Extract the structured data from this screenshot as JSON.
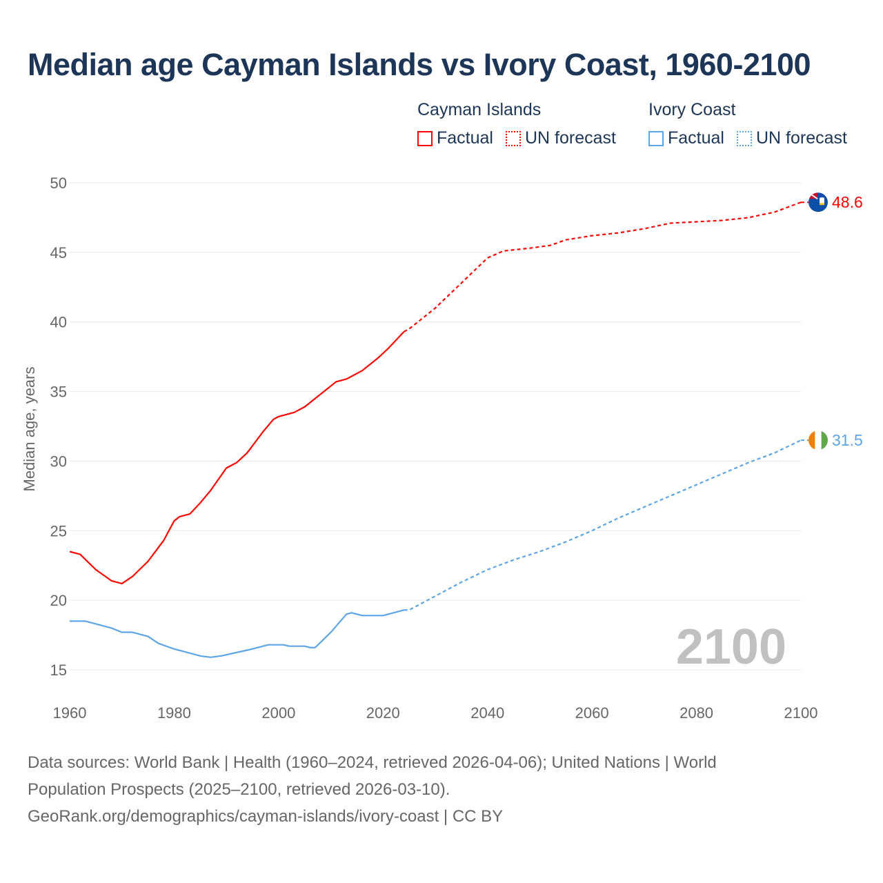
{
  "title": "Median age Cayman Islands vs Ivory Coast, 1960-2100",
  "legend": {
    "groups": [
      {
        "country": "Cayman Islands",
        "factual": "Factual",
        "forecast": "UN forecast",
        "color": "#ff0000"
      },
      {
        "country": "Ivory Coast",
        "factual": "Factual",
        "forecast": "UN forecast",
        "color": "#5ba4e8"
      }
    ]
  },
  "year_watermark": "2100",
  "footer": {
    "line1": "Data sources: World Bank | Health (1960–2024, retrieved 2026-04-06); United Nations | World",
    "line2": "Population Prospects (2025–2100, retrieved 2026-03-10).",
    "line3": "GeoRank.org/demographics/cayman-islands/ivory-coast | CC BY"
  },
  "chart_data": {
    "type": "line",
    "ylabel": "Median age, years",
    "xlabel": "",
    "xlim": [
      1960,
      2100
    ],
    "ylim": [
      15,
      50
    ],
    "xticks": [
      1960,
      1980,
      2000,
      2020,
      2040,
      2060,
      2080,
      2100
    ],
    "yticks": [
      15,
      20,
      25,
      30,
      35,
      40,
      45,
      50
    ],
    "grid": true,
    "legend_position": "top-right",
    "series": [
      {
        "name": "Cayman Islands",
        "color": "#ff0000",
        "end_label": "48.6",
        "factual": {
          "x": [
            1960,
            1962,
            1965,
            1968,
            1970,
            1972,
            1975,
            1978,
            1980,
            1981,
            1983,
            1985,
            1987,
            1990,
            1992,
            1994,
            1997,
            1999,
            2000,
            2003,
            2005,
            2008,
            2011,
            2013,
            2016,
            2019,
            2021,
            2024
          ],
          "y": [
            23.5,
            23.3,
            22.2,
            21.4,
            21.2,
            21.7,
            22.8,
            24.3,
            25.7,
            26.0,
            26.2,
            27.0,
            27.9,
            29.5,
            29.9,
            30.6,
            32.1,
            33.0,
            33.2,
            33.5,
            33.9,
            34.8,
            35.7,
            35.9,
            36.5,
            37.4,
            38.1,
            39.3
          ]
        },
        "forecast": {
          "x": [
            2024,
            2025,
            2030,
            2035,
            2040,
            2043,
            2048,
            2052,
            2055,
            2060,
            2065,
            2070,
            2075,
            2080,
            2085,
            2090,
            2095,
            2100
          ],
          "y": [
            39.3,
            39.5,
            41.0,
            42.8,
            44.6,
            45.1,
            45.3,
            45.5,
            45.9,
            46.2,
            46.4,
            46.7,
            47.1,
            47.2,
            47.3,
            47.5,
            47.9,
            48.6
          ]
        }
      },
      {
        "name": "Ivory Coast",
        "color": "#5ba4e8",
        "end_label": "31.5",
        "factual": {
          "x": [
            1960,
            1963,
            1968,
            1970,
            1972,
            1975,
            1977,
            1980,
            1985,
            1987,
            1989,
            1995,
            1998,
            2001,
            2002,
            2005,
            2006,
            2007,
            2010,
            2013,
            2014,
            2016,
            2020,
            2024
          ],
          "y": [
            18.5,
            18.5,
            18.0,
            17.7,
            17.7,
            17.4,
            16.9,
            16.5,
            16.0,
            15.9,
            16.0,
            16.5,
            16.8,
            16.8,
            16.7,
            16.7,
            16.6,
            16.6,
            17.7,
            19.0,
            19.1,
            18.9,
            18.9,
            19.3
          ]
        },
        "forecast": {
          "x": [
            2024,
            2025,
            2030,
            2035,
            2040,
            2045,
            2050,
            2055,
            2060,
            2065,
            2070,
            2075,
            2080,
            2085,
            2090,
            2095,
            2100
          ],
          "y": [
            19.3,
            19.3,
            20.3,
            21.3,
            22.2,
            22.9,
            23.5,
            24.2,
            25.0,
            25.9,
            26.7,
            27.5,
            28.3,
            29.1,
            29.9,
            30.6,
            31.5
          ]
        }
      }
    ]
  }
}
